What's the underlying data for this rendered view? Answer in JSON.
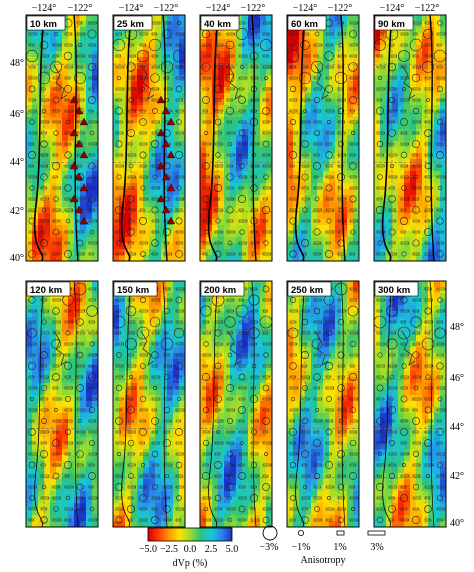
{
  "top_lon_labels": [
    "−124°",
    "−122°",
    "−124°",
    "−122°",
    "−124°",
    "−122°",
    "−124°",
    "−122°",
    "−124°",
    "−122°"
  ],
  "lat_labels": [
    "48°",
    "46°",
    "44°",
    "42°",
    "40°"
  ],
  "panels": [
    {
      "depth": "10 km"
    },
    {
      "depth": "25 km"
    },
    {
      "depth": "40 km"
    },
    {
      "depth": "60 km"
    },
    {
      "depth": "90 km"
    },
    {
      "depth": "120 km"
    },
    {
      "depth": "150 km"
    },
    {
      "depth": "200 km"
    },
    {
      "depth": "250 km"
    },
    {
      "depth": "300 km"
    }
  ],
  "colorbar": {
    "ticks": [
      "−5.0",
      "−2.5",
      "0.0",
      "2.5",
      "5.0"
    ],
    "label": "dVp (%)",
    "colors": [
      "#d40000",
      "#ff3a00",
      "#ff9a00",
      "#ffe000",
      "#9adf2a",
      "#2ec27a",
      "#17c9d8",
      "#2a86e8",
      "#1a33c8"
    ]
  },
  "legend": {
    "circle_label": "−3%",
    "item1": "−1%",
    "item2": "1%",
    "item3": "3%",
    "anisotropy_label": "Anisotropy"
  }
}
